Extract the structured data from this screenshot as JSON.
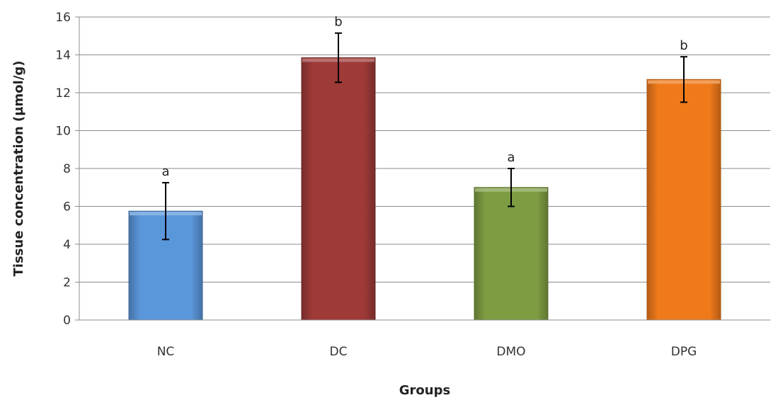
{
  "chart_data": {
    "type": "bar",
    "title": "",
    "xlabel": "Groups",
    "ylabel": "Tissue concentration (µmol/g)",
    "ylim": [
      0,
      16
    ],
    "yticks": [
      0,
      2,
      4,
      6,
      8,
      10,
      12,
      14,
      16
    ],
    "grid": true,
    "legend": "none",
    "categories": [
      "NC",
      "DC",
      "DMO",
      "DPG"
    ],
    "values": [
      5.75,
      13.85,
      7.0,
      12.7
    ],
    "errors": [
      1.5,
      1.3,
      1.0,
      1.2
    ],
    "significance_labels": [
      "a",
      "b",
      "a",
      "b"
    ],
    "colors": [
      "#5A96DA",
      "#9E3A38",
      "#7E9D43",
      "#F07A1A"
    ]
  }
}
